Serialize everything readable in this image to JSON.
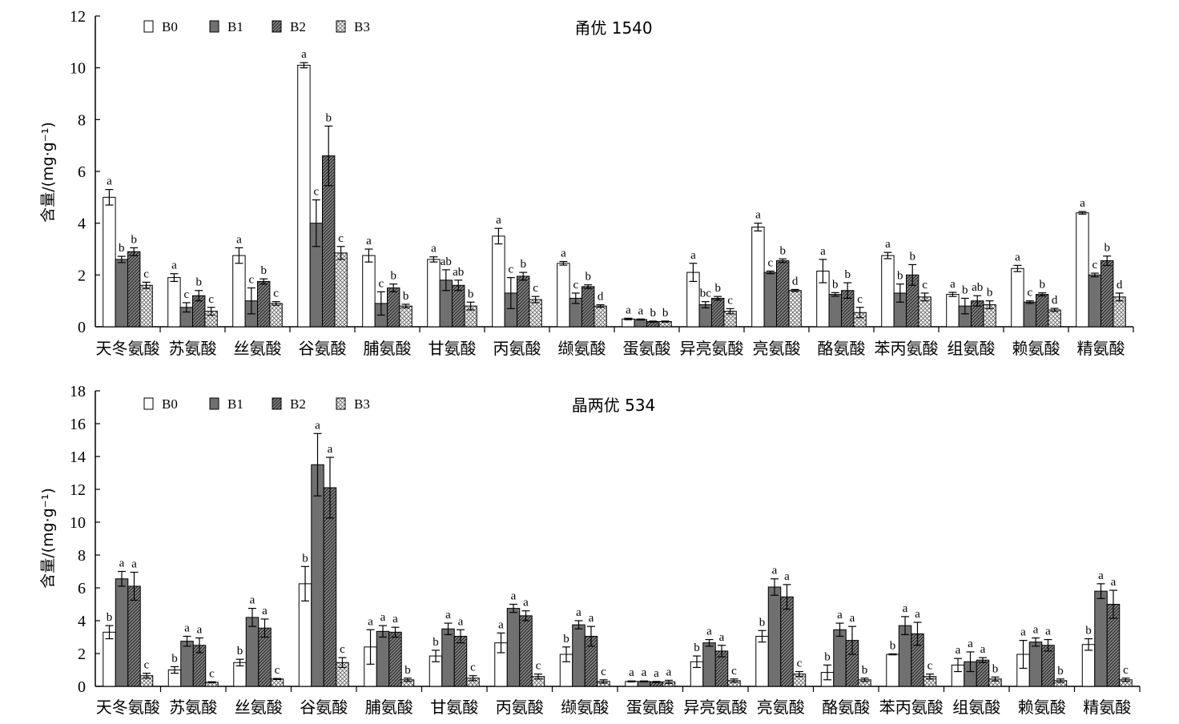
{
  "chart_data": [
    {
      "type": "bar",
      "title": "甬优 1540",
      "ylabel": "含量/(mg·g⁻¹)",
      "ylim": [
        0,
        12
      ],
      "yticks": [
        0,
        2,
        4,
        6,
        8,
        10,
        12
      ],
      "categories": [
        "天冬氨酸",
        "苏氨酸",
        "丝氨酸",
        "谷氨酸",
        "脯氨酸",
        "甘氨酸",
        "丙氨酸",
        "缬氨酸",
        "蛋氨酸",
        "异亮氨酸",
        "亮氨酸",
        "酪氨酸",
        "苯丙氨酸",
        "组氨酸",
        "赖氨酸",
        "精氨酸"
      ],
      "legend": [
        "B0",
        "B1",
        "B2",
        "B3"
      ],
      "series": [
        {
          "name": "B0",
          "values": [
            5.0,
            1.9,
            2.75,
            10.1,
            2.75,
            2.6,
            3.5,
            2.45,
            0.3,
            2.1,
            3.85,
            2.15,
            2.75,
            1.25,
            2.25,
            4.4
          ],
          "errors": [
            0.3,
            0.15,
            0.3,
            0.1,
            0.25,
            0.1,
            0.3,
            0.07,
            0.03,
            0.35,
            0.15,
            0.45,
            0.12,
            0.08,
            0.12,
            0.05
          ],
          "sig": [
            "a",
            "a",
            "a",
            "a",
            "a",
            "a",
            "a",
            "a",
            "a",
            "a",
            "a",
            "a",
            "a",
            "a",
            "a",
            "a"
          ]
        },
        {
          "name": "B1",
          "values": [
            2.6,
            0.75,
            1.0,
            4.0,
            0.9,
            1.8,
            1.3,
            1.1,
            0.28,
            0.85,
            2.1,
            1.25,
            1.3,
            0.8,
            0.95,
            2.0
          ],
          "errors": [
            0.12,
            0.18,
            0.5,
            0.9,
            0.45,
            0.4,
            0.6,
            0.2,
            0.02,
            0.12,
            0.05,
            0.07,
            0.35,
            0.3,
            0.05,
            0.07
          ],
          "sig": [
            "b",
            "c",
            "c",
            "c",
            "c",
            "ab",
            "c",
            "c",
            "a",
            "bc",
            "c",
            "b",
            "b",
            "b",
            "c",
            "c"
          ]
        },
        {
          "name": "B2",
          "values": [
            2.9,
            1.2,
            1.75,
            6.6,
            1.5,
            1.6,
            1.95,
            1.55,
            0.2,
            1.1,
            2.55,
            1.4,
            2.0,
            1.0,
            1.25,
            2.55
          ],
          "errors": [
            0.15,
            0.2,
            0.1,
            1.15,
            0.15,
            0.2,
            0.15,
            0.07,
            0.02,
            0.07,
            0.07,
            0.3,
            0.4,
            0.2,
            0.06,
            0.18
          ],
          "sig": [
            "b",
            "b",
            "b",
            "b",
            "b",
            "ab",
            "b",
            "b",
            "b",
            "b",
            "b",
            "b",
            "b",
            "ab",
            "b",
            "b"
          ]
        },
        {
          "name": "B3",
          "values": [
            1.6,
            0.6,
            0.9,
            2.85,
            0.8,
            0.8,
            1.05,
            0.8,
            0.2,
            0.6,
            1.4,
            0.55,
            1.15,
            0.85,
            0.65,
            1.15
          ],
          "errors": [
            0.12,
            0.15,
            0.07,
            0.25,
            0.07,
            0.15,
            0.12,
            0.05,
            0.02,
            0.1,
            0.04,
            0.2,
            0.15,
            0.15,
            0.06,
            0.15
          ],
          "sig": [
            "c",
            "c",
            "c",
            "c",
            "b",
            "b",
            "c",
            "d",
            "b",
            "c",
            "d",
            "c",
            "c",
            "b",
            "d",
            "d"
          ]
        }
      ]
    },
    {
      "type": "bar",
      "title": "晶两优 534",
      "ylabel": "含量/(mg·g⁻¹)",
      "ylim": [
        0,
        18
      ],
      "yticks": [
        0,
        2,
        4,
        6,
        8,
        10,
        12,
        14,
        16,
        18
      ],
      "categories": [
        "天冬氨酸",
        "苏氨酸",
        "丝氨酸",
        "谷氨酸",
        "脯氨酸",
        "甘氨酸",
        "丙氨酸",
        "缬氨酸",
        "蛋氨酸",
        "异亮氨酸",
        "亮氨酸",
        "酪氨酸",
        "苯丙氨酸",
        "组氨酸",
        "赖氨酸",
        "精氨酸"
      ],
      "legend": [
        "B0",
        "B1",
        "B2",
        "B3"
      ],
      "series": [
        {
          "name": "B0",
          "values": [
            3.3,
            1.0,
            1.45,
            6.25,
            2.4,
            1.85,
            2.65,
            1.95,
            0.3,
            1.5,
            3.05,
            0.85,
            1.95,
            1.3,
            1.95,
            2.55
          ],
          "errors": [
            0.4,
            0.2,
            0.2,
            1.05,
            1.05,
            0.35,
            0.6,
            0.45,
            0.03,
            0.35,
            0.35,
            0.45,
            0.03,
            0.4,
            0.85,
            0.35
          ],
          "sig": [
            "b",
            "b",
            "b",
            "b",
            "a",
            "b",
            "a",
            "b",
            "a",
            "b",
            "b",
            "b",
            "b",
            "a",
            "a",
            "b"
          ]
        },
        {
          "name": "B1",
          "values": [
            6.55,
            2.75,
            4.2,
            13.5,
            3.35,
            3.5,
            4.75,
            3.75,
            0.3,
            2.65,
            6.05,
            3.45,
            3.7,
            1.5,
            2.7,
            5.8
          ],
          "errors": [
            0.45,
            0.3,
            0.55,
            1.9,
            0.35,
            0.35,
            0.25,
            0.25,
            0.03,
            0.2,
            0.5,
            0.4,
            0.55,
            0.6,
            0.25,
            0.45
          ],
          "sig": [
            "a",
            "a",
            "a",
            "a",
            "a",
            "a",
            "a",
            "a",
            "a",
            "a",
            "a",
            "a",
            "a",
            "a",
            "a",
            "a"
          ]
        },
        {
          "name": "B2",
          "values": [
            6.1,
            2.5,
            3.55,
            12.1,
            3.3,
            3.05,
            4.3,
            3.05,
            0.27,
            2.15,
            5.45,
            2.8,
            3.2,
            1.6,
            2.5,
            5.0
          ],
          "errors": [
            0.85,
            0.45,
            0.55,
            1.85,
            0.3,
            0.4,
            0.3,
            0.6,
            0.03,
            0.35,
            0.75,
            0.85,
            0.7,
            0.15,
            0.35,
            0.85
          ],
          "sig": [
            "a",
            "a",
            "a",
            "a",
            "a",
            "a",
            "a",
            "a",
            "a",
            "a",
            "a",
            "a",
            "a",
            "a",
            "a",
            "a"
          ]
        },
        {
          "name": "B3",
          "values": [
            0.65,
            0.25,
            0.45,
            1.45,
            0.4,
            0.5,
            0.6,
            0.3,
            0.27,
            0.35,
            0.75,
            0.4,
            0.6,
            0.45,
            0.35,
            0.4
          ],
          "errors": [
            0.15,
            0.03,
            0.03,
            0.3,
            0.1,
            0.15,
            0.15,
            0.1,
            0.1,
            0.1,
            0.15,
            0.1,
            0.15,
            0.12,
            0.1,
            0.1
          ],
          "sig": [
            "c",
            "c",
            "c",
            "c",
            "b",
            "c",
            "c",
            "c",
            "a",
            "c",
            "c",
            "b",
            "c",
            "b",
            "b",
            "c"
          ]
        }
      ]
    }
  ]
}
